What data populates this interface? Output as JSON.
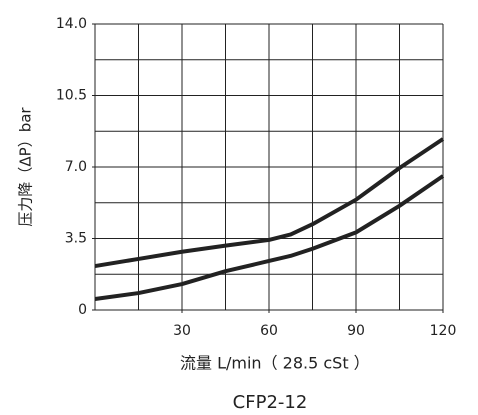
{
  "chart_data": {
    "type": "line",
    "xlabel": "流量 L/min（ 28.5 cSt ）",
    "ylabel": "压力降（ΔP）bar",
    "subtitle": "CFP2-12",
    "x": [
      0,
      15,
      30,
      45,
      60,
      67.5,
      75,
      90,
      105,
      120
    ],
    "series": [
      {
        "color": "#222222",
        "values": [
          2.15,
          2.5,
          2.85,
          3.15,
          3.43,
          3.7,
          4.2,
          5.4,
          6.95,
          8.37
        ]
      },
      {
        "color": "#222222",
        "values": [
          0.54,
          0.83,
          1.27,
          1.9,
          2.4,
          2.65,
          3.0,
          3.8,
          5.1,
          6.56
        ]
      }
    ],
    "xlim": [
      0,
      120
    ],
    "ylim": [
      0,
      14
    ],
    "xticks": [
      30,
      60,
      90,
      120
    ],
    "yticks": [
      0,
      3.5,
      {
        "value": 7,
        "label": "7.0"
      },
      10.5,
      {
        "value": 14,
        "label": "14.0"
      }
    ],
    "grid_divisions": {
      "x": 8,
      "y": 8
    }
  }
}
